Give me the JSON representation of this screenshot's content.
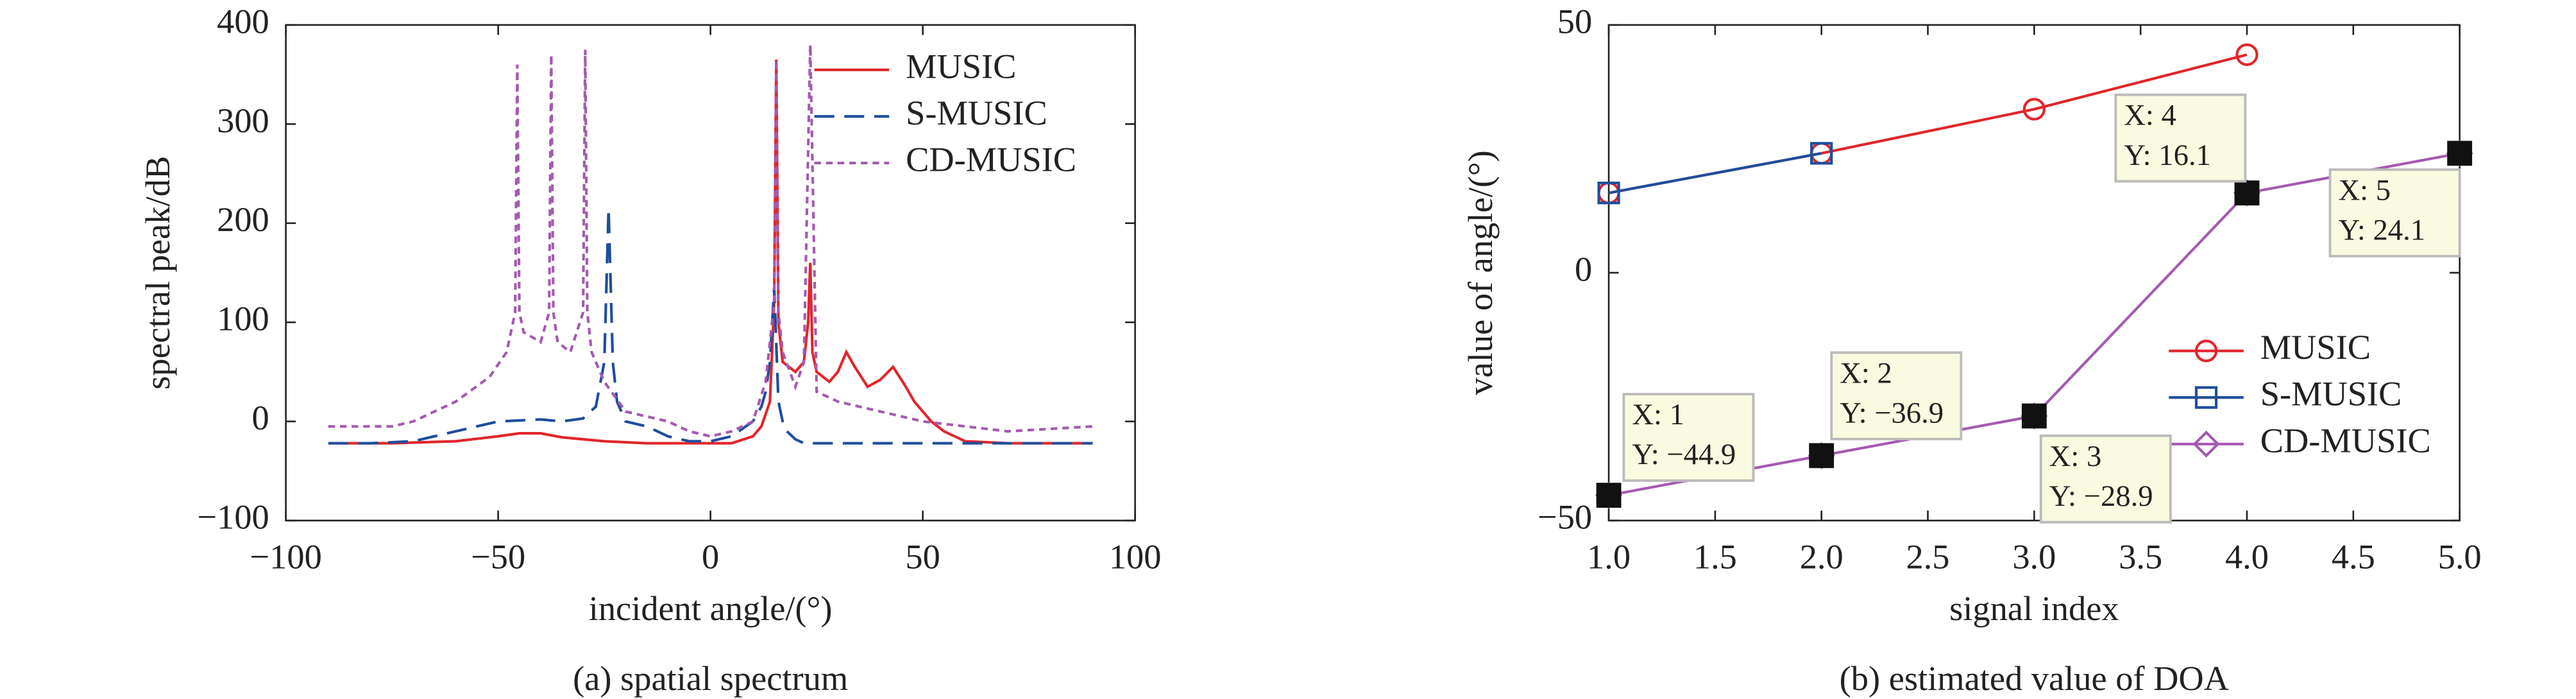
{
  "chart_data": [
    {
      "type": "line",
      "caption": "(a) spatial spectrum",
      "xlabel": "incident angle/(°)",
      "ylabel": "spectral peak/dB",
      "xlim": [
        -100,
        100
      ],
      "xticks": [
        {
          "value": -100,
          "label": "−100"
        },
        {
          "value": -50,
          "label": "−50"
        },
        0,
        50,
        100
      ],
      "ylim": [
        -100,
        400
      ],
      "yticks": [
        {
          "value": -100,
          "label": "−100"
        },
        0,
        100,
        200,
        300,
        400
      ],
      "legend": "upper right",
      "series": [
        {
          "name": "MUSIC",
          "color": "#e0262b",
          "linestyle": "solid",
          "x": [
            -90,
            -75,
            -60,
            -50,
            -45,
            -40,
            -35,
            -25,
            -15,
            -5,
            0,
            5,
            10,
            12,
            14,
            15,
            15.5,
            16,
            17,
            20,
            22,
            23,
            23.5,
            24,
            25,
            28,
            30,
            32,
            34,
            37,
            40,
            43,
            46,
            48,
            52,
            55,
            60,
            70,
            90
          ],
          "values": [
            -22,
            -22,
            -20,
            -15,
            -12,
            -12,
            -16,
            -20,
            -22,
            -22,
            -22,
            -22,
            -15,
            -5,
            20,
            120,
            365,
            100,
            60,
            50,
            60,
            100,
            160,
            70,
            50,
            40,
            50,
            70,
            55,
            35,
            42,
            55,
            35,
            20,
            0,
            -10,
            -20,
            -22,
            -22
          ]
        },
        {
          "name": "S-MUSIC",
          "color": "#1f4e9c",
          "linestyle": "dashed",
          "x": [
            -90,
            -80,
            -70,
            -60,
            -50,
            -40,
            -35,
            -30,
            -27,
            -25,
            -24,
            -23,
            -22,
            -20,
            -15,
            -10,
            -5,
            0,
            5,
            10,
            12,
            13,
            14,
            15,
            16,
            17,
            18,
            20,
            22,
            30,
            50,
            70,
            90
          ],
          "values": [
            -22,
            -22,
            -20,
            -10,
            0,
            2,
            0,
            3,
            15,
            60,
            215,
            60,
            20,
            0,
            -5,
            -15,
            -20,
            -20,
            -15,
            0,
            15,
            30,
            60,
            135,
            20,
            0,
            -10,
            -18,
            -22,
            -22,
            -22,
            -22,
            -22
          ]
        },
        {
          "name": "CD-MUSIC",
          "color": "#a45ab0",
          "linestyle": "dotted",
          "x": [
            -90,
            -75,
            -70,
            -60,
            -52,
            -48,
            -46,
            -45.5,
            -45,
            -44,
            -40,
            -38,
            -37.5,
            -37,
            -36,
            -33,
            -30,
            -29.5,
            -29,
            -28,
            -25,
            -20,
            -10,
            -5,
            0,
            5,
            10,
            13,
            15,
            15.5,
            16,
            17,
            20,
            22,
            23.5,
            25,
            30,
            40,
            50,
            60,
            70,
            90
          ],
          "values": [
            -5,
            -5,
            0,
            20,
            45,
            70,
            110,
            360,
            110,
            90,
            80,
            110,
            370,
            110,
            80,
            70,
            110,
            375,
            110,
            70,
            40,
            10,
            0,
            -10,
            -15,
            -10,
            0,
            40,
            120,
            365,
            110,
            70,
            35,
            60,
            380,
            30,
            20,
            10,
            0,
            -5,
            -10,
            -5
          ]
        }
      ]
    },
    {
      "type": "line",
      "caption": "(b) estimated value of DOA",
      "xlabel": "signal index",
      "ylabel": "value of angle/(°)",
      "xlim": [
        1,
        5
      ],
      "xticks": [
        {
          "value": 1,
          "label": "1.0"
        },
        1.5,
        {
          "value": 2,
          "label": "2.0"
        },
        2.5,
        {
          "value": 3,
          "label": "3.0"
        },
        3.5,
        {
          "value": 4,
          "label": "4.0"
        },
        4.5,
        {
          "value": 5,
          "label": "5.0"
        }
      ],
      "ylim": [
        -50,
        50
      ],
      "yticks": [
        {
          "value": -50,
          "label": "−50"
        },
        0,
        50
      ],
      "legend": "lower right",
      "x": [
        1,
        2,
        3,
        4,
        5
      ],
      "series": [
        {
          "name": "MUSIC",
          "color": "#e0262b",
          "linestyle": "solid",
          "marker": "circle",
          "values": [
            16.1,
            24.1,
            33,
            44,
            null
          ]
        },
        {
          "name": "S-MUSIC",
          "color": "#1f4e9c",
          "linestyle": "solid",
          "marker": "square",
          "values": [
            16.1,
            24.1,
            null,
            null,
            null
          ]
        },
        {
          "name": "CD-MUSIC",
          "color": "#a45ab0",
          "linestyle": "solid",
          "marker": "diamond",
          "values": [
            -44.9,
            -36.9,
            -28.9,
            16.1,
            24.1
          ]
        }
      ],
      "datatips": [
        {
          "series": 2,
          "index": 0,
          "x_text": "X: 1",
          "y_text": "Y: −44.9"
        },
        {
          "series": 2,
          "index": 1,
          "x_text": "X: 2",
          "y_text": "Y: −36.9"
        },
        {
          "series": 2,
          "index": 2,
          "x_text": "X: 3",
          "y_text": "Y: −28.9"
        },
        {
          "series": 2,
          "index": 3,
          "x_text": "X: 4",
          "y_text": "Y: 16.1"
        },
        {
          "series": 2,
          "index": 4,
          "x_text": "X: 5",
          "y_text": "Y: 24.1"
        }
      ]
    }
  ]
}
